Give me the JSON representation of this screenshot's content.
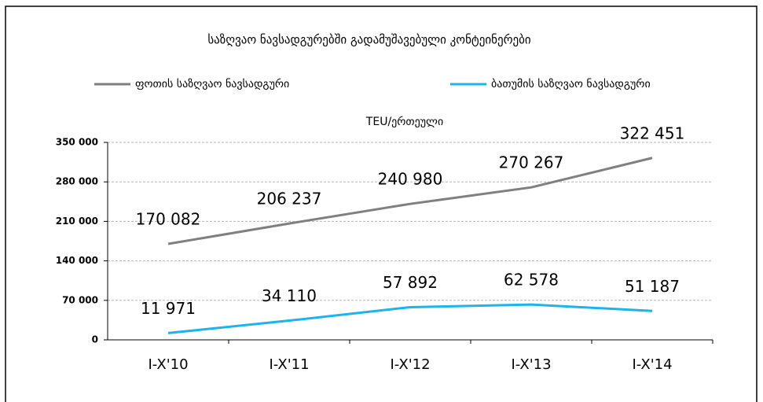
{
  "chart_data": {
    "type": "line",
    "title": "საზღვაო ნავსადგურებში გადამუშავებული კონტეინერები",
    "subtitle": "TEU/ერთეული",
    "categories": [
      "I-X'10",
      "I-X'11",
      "I-X'12",
      "I-X'13",
      "I-X'14"
    ],
    "series": [
      {
        "name": "ფოთის საზღვაო ნავსადგური",
        "color": "#808080",
        "values": [
          170082,
          206237,
          240980,
          270267,
          322451
        ],
        "value_labels": [
          "170 082",
          "206 237",
          "240 980",
          "270 267",
          "322 451"
        ]
      },
      {
        "name": "ბათუმის საზღვაო ნავსადგური",
        "color": "#1cb4ea",
        "values": [
          11971,
          34110,
          57892,
          62578,
          51187
        ],
        "value_labels": [
          "11 971",
          "34 110",
          "57 892",
          "62 578",
          "51 187"
        ]
      }
    ],
    "ylim": [
      0,
      350000
    ],
    "yticks": [
      {
        "value": 0,
        "label": "0"
      },
      {
        "value": 70000,
        "label": "70 000"
      },
      {
        "value": 140000,
        "label": "140 000"
      },
      {
        "value": 210000,
        "label": "210 000"
      },
      {
        "value": 280000,
        "label": "280 000"
      },
      {
        "value": 350000,
        "label": "350 000"
      }
    ],
    "grid": true,
    "legend": "top"
  }
}
